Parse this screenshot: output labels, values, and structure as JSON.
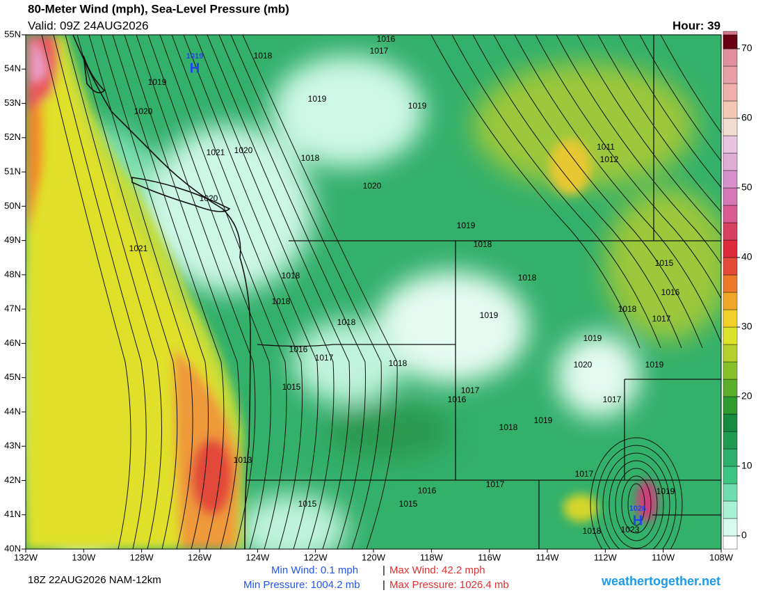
{
  "header": {
    "title": "80-Meter Wind (mph), Sea-Level Pressure (mb)",
    "valid": "Valid: 09Z 24AUG2026",
    "hour": "Hour: 39"
  },
  "lat_labels": [
    "55N",
    "54N",
    "53N",
    "52N",
    "51N",
    "50N",
    "49N",
    "48N",
    "47N",
    "46N",
    "45N",
    "44N",
    "43N",
    "42N",
    "41N",
    "40N"
  ],
  "lon_labels": [
    "132W",
    "130W",
    "128W",
    "126W",
    "124W",
    "122W",
    "120W",
    "118W",
    "116W",
    "114W",
    "112W",
    "110W",
    "108W"
  ],
  "colorbar": {
    "ticks": [
      0,
      10,
      20,
      30,
      40,
      50,
      60,
      70
    ]
  },
  "highs": [
    {
      "value": "1019",
      "letter": "H"
    },
    {
      "value": "1026",
      "letter": "H"
    }
  ],
  "isobar_labels": [
    "1016",
    "1017",
    "1018",
    "1019",
    "1020",
    "1019",
    "1019",
    "1021",
    "1020",
    "1018",
    "1020",
    "1020",
    "1011",
    "1012",
    "1019",
    "1018",
    "1021",
    "1015",
    "1018",
    "1018",
    "1016",
    "1018",
    "1018",
    "1017",
    "1019",
    "1018",
    "1019",
    "1016",
    "1017",
    "1018",
    "1020",
    "1019",
    "1015",
    "1017",
    "1016",
    "1017",
    "1019",
    "1018",
    "1013",
    "1017",
    "1017",
    "1016",
    "1019",
    "1015",
    "1015",
    "1018",
    "1023"
  ],
  "footer": {
    "run": "18Z 22AUG2026 NAM-12km",
    "min_wind": "Min Wind:   0.1 mph",
    "separator": "|",
    "max_wind": "Max Wind:  42.2 mph",
    "min_pressure": "Min Pressure: 1004.2 mb",
    "max_pressure": "Max Pressure: 1026.4 mb",
    "site": "weathertogether.net"
  }
}
